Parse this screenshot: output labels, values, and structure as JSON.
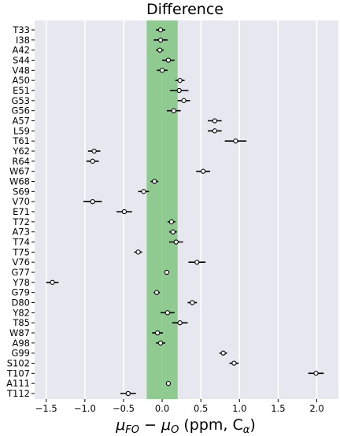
{
  "chart_data": {
    "type": "scatter",
    "title": "Difference",
    "xlabel": "μFO − μO (ppm, Cα)",
    "xlabel_parts": {
      "mu": "μ",
      "sub1": "FO",
      "minus": " − ",
      "sub2": "O",
      "units": " (ppm, C",
      "alpha": "α",
      "close": ")"
    },
    "xlim": [
      -1.65,
      2.28
    ],
    "xticks": [
      -1.5,
      -1.0,
      -0.5,
      0.0,
      0.5,
      1.0,
      1.5,
      2.0
    ],
    "xtick_labels": [
      "−1.5",
      "−1.0",
      "−0.5",
      "0.0",
      "0.5",
      "1.0",
      "1.5",
      "2.0"
    ],
    "band": {
      "from": -0.2,
      "to": 0.2,
      "color": "#7fc67f"
    },
    "background_color": "#e7e7f0",
    "grid": "vertical lines at x ticks",
    "categories": [
      "T33",
      "I38",
      "A42",
      "S44",
      "V48",
      "A50",
      "E51",
      "G53",
      "G56",
      "A57",
      "L59",
      "T61",
      "Y62",
      "R64",
      "W67",
      "W68",
      "S69",
      "V70",
      "E71",
      "T72",
      "A73",
      "T74",
      "T75",
      "V76",
      "G77",
      "Y78",
      "G79",
      "D80",
      "Y82",
      "T85",
      "W87",
      "A98",
      "G99",
      "S102",
      "T107",
      "A111",
      "T112"
    ],
    "values": [
      -0.02,
      -0.02,
      -0.03,
      0.08,
      0.0,
      0.23,
      0.22,
      0.28,
      0.15,
      0.68,
      0.68,
      0.95,
      -0.88,
      -0.9,
      0.53,
      -0.1,
      -0.24,
      -0.9,
      -0.49,
      0.12,
      0.14,
      0.18,
      -0.31,
      0.45,
      0.06,
      -1.42,
      -0.07,
      0.39,
      0.07,
      0.23,
      -0.06,
      -0.02,
      0.79,
      0.93,
      1.99,
      0.08,
      -0.44
    ],
    "errors": [
      0.06,
      0.09,
      0.05,
      0.08,
      0.07,
      0.06,
      0.12,
      0.08,
      0.09,
      0.09,
      0.09,
      0.14,
      0.08,
      0.08,
      0.09,
      0.05,
      0.07,
      0.12,
      0.1,
      0.05,
      0.05,
      0.09,
      0.05,
      0.11,
      0.0,
      0.08,
      0.04,
      0.06,
      0.09,
      0.1,
      0.07,
      0.06,
      0.05,
      0.06,
      0.1,
      0.0,
      0.1
    ]
  }
}
